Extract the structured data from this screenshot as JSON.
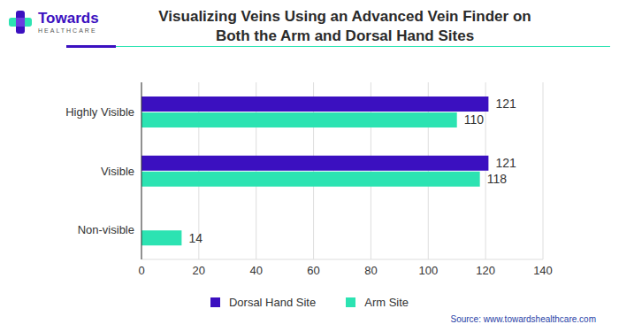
{
  "logo": {
    "name": "Towards",
    "tagline": "HEALTHCARE"
  },
  "source": "Source: www.towardshealthcare.com",
  "chart_data": {
    "type": "bar",
    "title": "Visualizing Veins Using an Advanced Vein Finder on Both the Arm and Dorsal Hand Sites",
    "orientation": "horizontal",
    "categories": [
      "Highly Visible",
      "Visible",
      "Non-visible"
    ],
    "series": [
      {
        "name": "Dorsal Hand Site",
        "color": "#3b10c0",
        "values": [
          121,
          121,
          0
        ]
      },
      {
        "name": "Arm Site",
        "color": "#2ce3b2",
        "values": [
          110,
          118,
          14
        ]
      }
    ],
    "xlim": [
      0,
      140
    ],
    "xticks": [
      0,
      20,
      40,
      60,
      80,
      100,
      120,
      140
    ],
    "grid": true,
    "data_labels": true,
    "legend": "bottom"
  }
}
